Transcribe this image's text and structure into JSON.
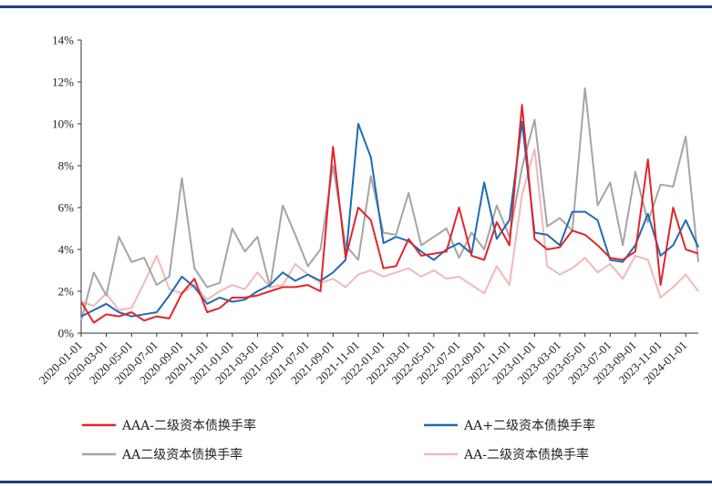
{
  "chart_data": {
    "type": "line",
    "title": "",
    "xlabel": "",
    "ylabel": "",
    "ylim": [
      0,
      14
    ],
    "y_ticks": [
      "0%",
      "2%",
      "4%",
      "6%",
      "8%",
      "10%",
      "12%",
      "14%"
    ],
    "x_ticks": [
      "2020-01-01",
      "2020-03-01",
      "2020-05-01",
      "2020-07-01",
      "2020-09-01",
      "2020-11-01",
      "2021-01-01",
      "2021-03-01",
      "2021-05-01",
      "2021-07-01",
      "2021-09-01",
      "2021-11-01",
      "2022-01-01",
      "2022-03-01",
      "2022-05-01",
      "2022-07-01",
      "2022-09-01",
      "2022-11-01",
      "2023-01-01",
      "2023-03-01",
      "2023-05-01",
      "2023-07-01",
      "2023-09-01",
      "2023-11-01",
      "2024-01-01"
    ],
    "grid": false,
    "legend_position": "bottom",
    "x": [
      "2020-01-01",
      "2020-02-01",
      "2020-03-01",
      "2020-04-01",
      "2020-05-01",
      "2020-06-01",
      "2020-07-01",
      "2020-08-01",
      "2020-09-01",
      "2020-10-01",
      "2020-11-01",
      "2020-12-01",
      "2021-01-01",
      "2021-02-01",
      "2021-03-01",
      "2021-04-01",
      "2021-05-01",
      "2021-06-01",
      "2021-07-01",
      "2021-08-01",
      "2021-09-01",
      "2021-10-01",
      "2021-11-01",
      "2021-12-01",
      "2022-01-01",
      "2022-02-01",
      "2022-03-01",
      "2022-04-01",
      "2022-05-01",
      "2022-06-01",
      "2022-07-01",
      "2022-08-01",
      "2022-09-01",
      "2022-10-01",
      "2022-11-01",
      "2022-12-01",
      "2023-01-01",
      "2023-02-01",
      "2023-03-01",
      "2023-04-01",
      "2023-05-01",
      "2023-06-01",
      "2023-07-01",
      "2023-08-01",
      "2023-09-01",
      "2023-10-01",
      "2023-11-01",
      "2023-12-01",
      "2024-01-01",
      "2024-02-01"
    ],
    "series": [
      {
        "name": "AAA-二级资本债换手率",
        "color": "#e2242b",
        "values": [
          1.5,
          0.5,
          0.9,
          0.8,
          1.0,
          0.6,
          0.8,
          0.7,
          1.9,
          2.6,
          1.0,
          1.2,
          1.7,
          1.7,
          1.8,
          2.0,
          2.2,
          2.2,
          2.3,
          2.0,
          8.9,
          3.6,
          6.0,
          5.4,
          3.1,
          3.2,
          4.5,
          3.7,
          3.8,
          3.9,
          6.0,
          3.7,
          3.5,
          5.3,
          4.2,
          10.9,
          4.5,
          4.0,
          4.1,
          4.9,
          4.7,
          4.2,
          3.6,
          3.5,
          3.9,
          8.3,
          2.3,
          6.0,
          4.0,
          3.8
        ]
      },
      {
        "name": "AA+二级资本债换手率",
        "color": "#1f6bb5",
        "values": [
          0.8,
          1.1,
          1.4,
          1.0,
          0.8,
          0.9,
          1.0,
          1.8,
          2.7,
          2.2,
          1.4,
          1.7,
          1.5,
          1.6,
          2.0,
          2.3,
          2.9,
          2.5,
          2.8,
          2.5,
          2.9,
          3.5,
          10.0,
          8.4,
          4.3,
          4.6,
          4.4,
          3.9,
          3.5,
          4.0,
          4.3,
          3.8,
          7.2,
          4.5,
          5.4,
          10.1,
          4.8,
          4.7,
          4.2,
          5.8,
          5.8,
          5.4,
          3.5,
          3.4,
          4.2,
          5.7,
          3.7,
          4.2,
          5.4,
          4.1
        ]
      },
      {
        "name": "AA二级资本债换手率",
        "color": "#a5a5a5",
        "values": [
          0.6,
          2.9,
          1.8,
          4.6,
          3.4,
          3.6,
          2.3,
          2.7,
          7.4,
          3.1,
          2.2,
          2.4,
          5.0,
          3.9,
          4.6,
          2.2,
          6.1,
          4.7,
          3.2,
          4.0,
          8.0,
          4.2,
          3.5,
          7.5,
          4.8,
          4.7,
          6.7,
          4.2,
          4.6,
          5.0,
          3.6,
          4.8,
          4.0,
          6.1,
          4.6,
          7.9,
          10.2,
          5.1,
          5.5,
          4.9,
          11.7,
          6.1,
          7.2,
          4.2,
          7.7,
          5.3,
          7.1,
          7.0,
          9.4,
          3.4
        ]
      },
      {
        "name": "AA-二级资本债换手率",
        "color": "#f2b8b8",
        "values": [
          1.5,
          1.3,
          1.9,
          1.1,
          1.2,
          2.4,
          3.7,
          2.1,
          1.9,
          2.3,
          1.6,
          2.0,
          2.3,
          2.1,
          2.9,
          2.2,
          2.3,
          3.3,
          2.8,
          2.4,
          2.6,
          2.2,
          2.8,
          3.0,
          2.7,
          2.9,
          3.1,
          2.7,
          3.0,
          2.6,
          2.7,
          2.3,
          1.9,
          3.2,
          2.3,
          6.6,
          8.8,
          3.2,
          2.8,
          3.1,
          3.6,
          2.9,
          3.3,
          2.6,
          3.7,
          3.5,
          1.7,
          2.2,
          2.8,
          2.0
        ]
      }
    ]
  }
}
